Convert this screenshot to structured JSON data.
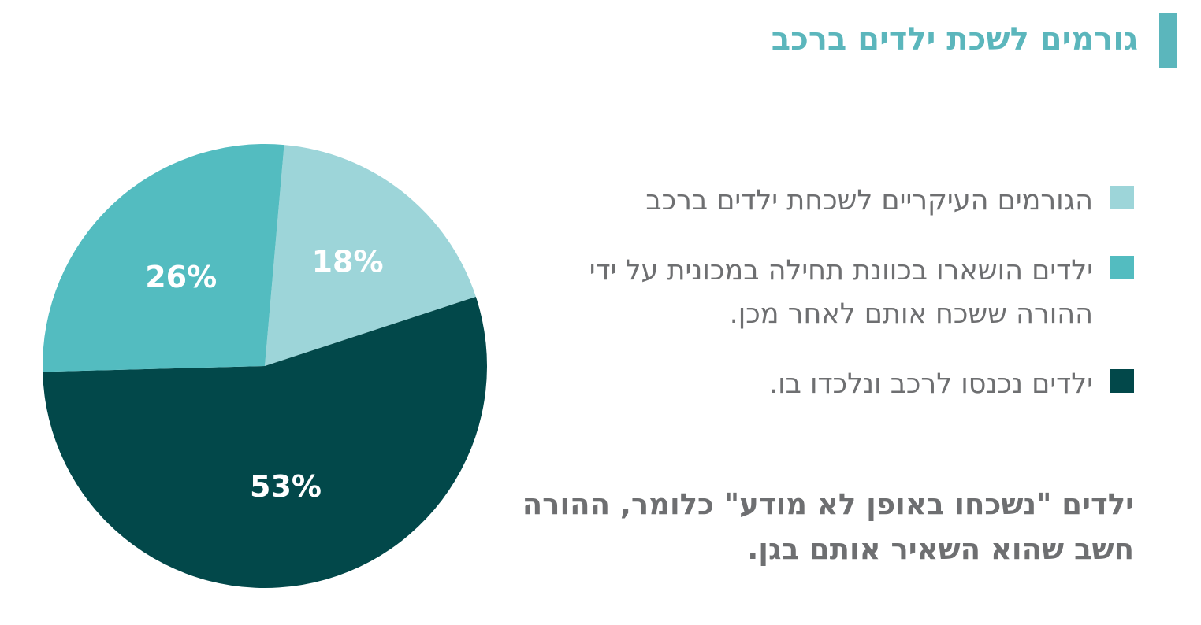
{
  "header": {
    "title": "גורמים לשכת ילדים ברכב"
  },
  "chart_data": {
    "type": "pie",
    "title": "גורמים לשכת ילדים ברכב",
    "start_angle_deg": 5,
    "slices": [
      {
        "value": 18,
        "label": "18%",
        "color": "#9dd5d9"
      },
      {
        "value": 53,
        "label": "53%",
        "color": "#02484a"
      },
      {
        "value": 26,
        "label": "26%",
        "color": "#53bcc0"
      }
    ],
    "legend_placement": "right"
  },
  "legend": [
    {
      "text": "הגורמים העיקריים לשכחת ילדים ברכב",
      "color": "#9dd5d9"
    },
    {
      "text": "ילדים הושארו בכוונת תחילה במכונית על ידי ההורה ששכח אותם לאחר מכן.",
      "color": "#53bcc0"
    },
    {
      "text": "ילדים נכנסו לרכב ונלכדו בו.",
      "color": "#02484a"
    }
  ],
  "note": {
    "text": "ילדים \"נשכחו באופן לא מודע\" כלומר, ההורה חשב שהוא השאיר אותם בגן."
  }
}
